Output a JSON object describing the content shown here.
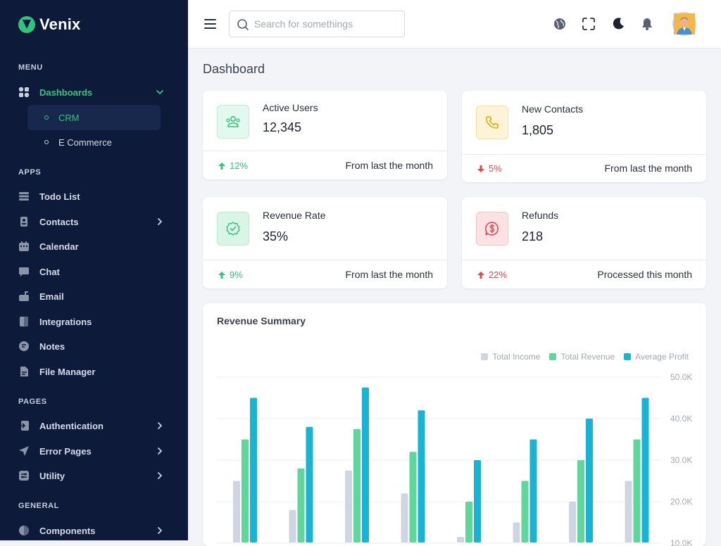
{
  "brand": {
    "name": "Venix"
  },
  "sidebar": {
    "sections": {
      "menu": "MENU",
      "apps": "APPS",
      "pages": "PAGES",
      "general": "GENERAL"
    },
    "dashboards": {
      "label": "Dashboards",
      "children": [
        "CRM",
        "E Commerce"
      ]
    },
    "apps": [
      "Todo List",
      "Contacts",
      "Calendar",
      "Chat",
      "Email",
      "Integrations",
      "Notes",
      "File Manager"
    ],
    "pages": [
      "Authentication",
      "Error Pages",
      "Utility"
    ],
    "general": [
      "Components"
    ]
  },
  "header": {
    "search_placeholder": "Search for somethings"
  },
  "page": {
    "title": "Dashboard"
  },
  "stats": [
    {
      "label": "Active Users",
      "value": "12,345",
      "change": "12%",
      "direction": "up",
      "change_color": "#2fc57a",
      "note": "From last the month",
      "icon": "users-icon",
      "icon_bg": "#e3f8ee",
      "icon_color": "#2fc57a"
    },
    {
      "label": "New Contacts",
      "value": "1,805",
      "change": "5%",
      "direction": "down",
      "change_color": "#e5454f",
      "note": "From last the month",
      "icon": "phone-icon",
      "icon_bg": "#fdf3d7",
      "icon_color": "#e0a800"
    },
    {
      "label": "Revenue Rate",
      "value": "35%",
      "change": "9%",
      "direction": "up",
      "change_color": "#2fc57a",
      "note": "From last the month",
      "icon": "badge-check-icon",
      "icon_bg": "#d9f5e6",
      "icon_color": "#2fc57a"
    },
    {
      "label": "Refunds",
      "value": "218",
      "change": "22%",
      "direction": "up",
      "change_color": "#e5454f",
      "note": "Processed this month",
      "icon": "dollar-chat-icon",
      "icon_bg": "#fde2e4",
      "icon_color": "#e5454f"
    }
  ],
  "chart_data": {
    "type": "bar",
    "title": "Revenue Summary",
    "ylim": [
      10000,
      50000
    ],
    "yticks": [
      "50.0K",
      "40.0K",
      "30.0K",
      "20.0K",
      "10.0K"
    ],
    "ytick_values": [
      50000,
      40000,
      30000,
      20000,
      10000
    ],
    "legend_position": "top-right",
    "grid": true,
    "series": [
      {
        "name": "Total Income",
        "color": "#cfd6e1",
        "values": [
          25000,
          18000,
          27500,
          22000,
          11500,
          15000,
          20000,
          25000
        ]
      },
      {
        "name": "Total Revenue",
        "color": "#5fd79a",
        "values": [
          35000,
          28000,
          37500,
          32000,
          20000,
          25000,
          30000,
          35000
        ]
      },
      {
        "name": "Average Profit",
        "color": "#18b4d6",
        "values": [
          45000,
          38000,
          47500,
          42000,
          30000,
          35000,
          40000,
          45000
        ]
      }
    ]
  }
}
